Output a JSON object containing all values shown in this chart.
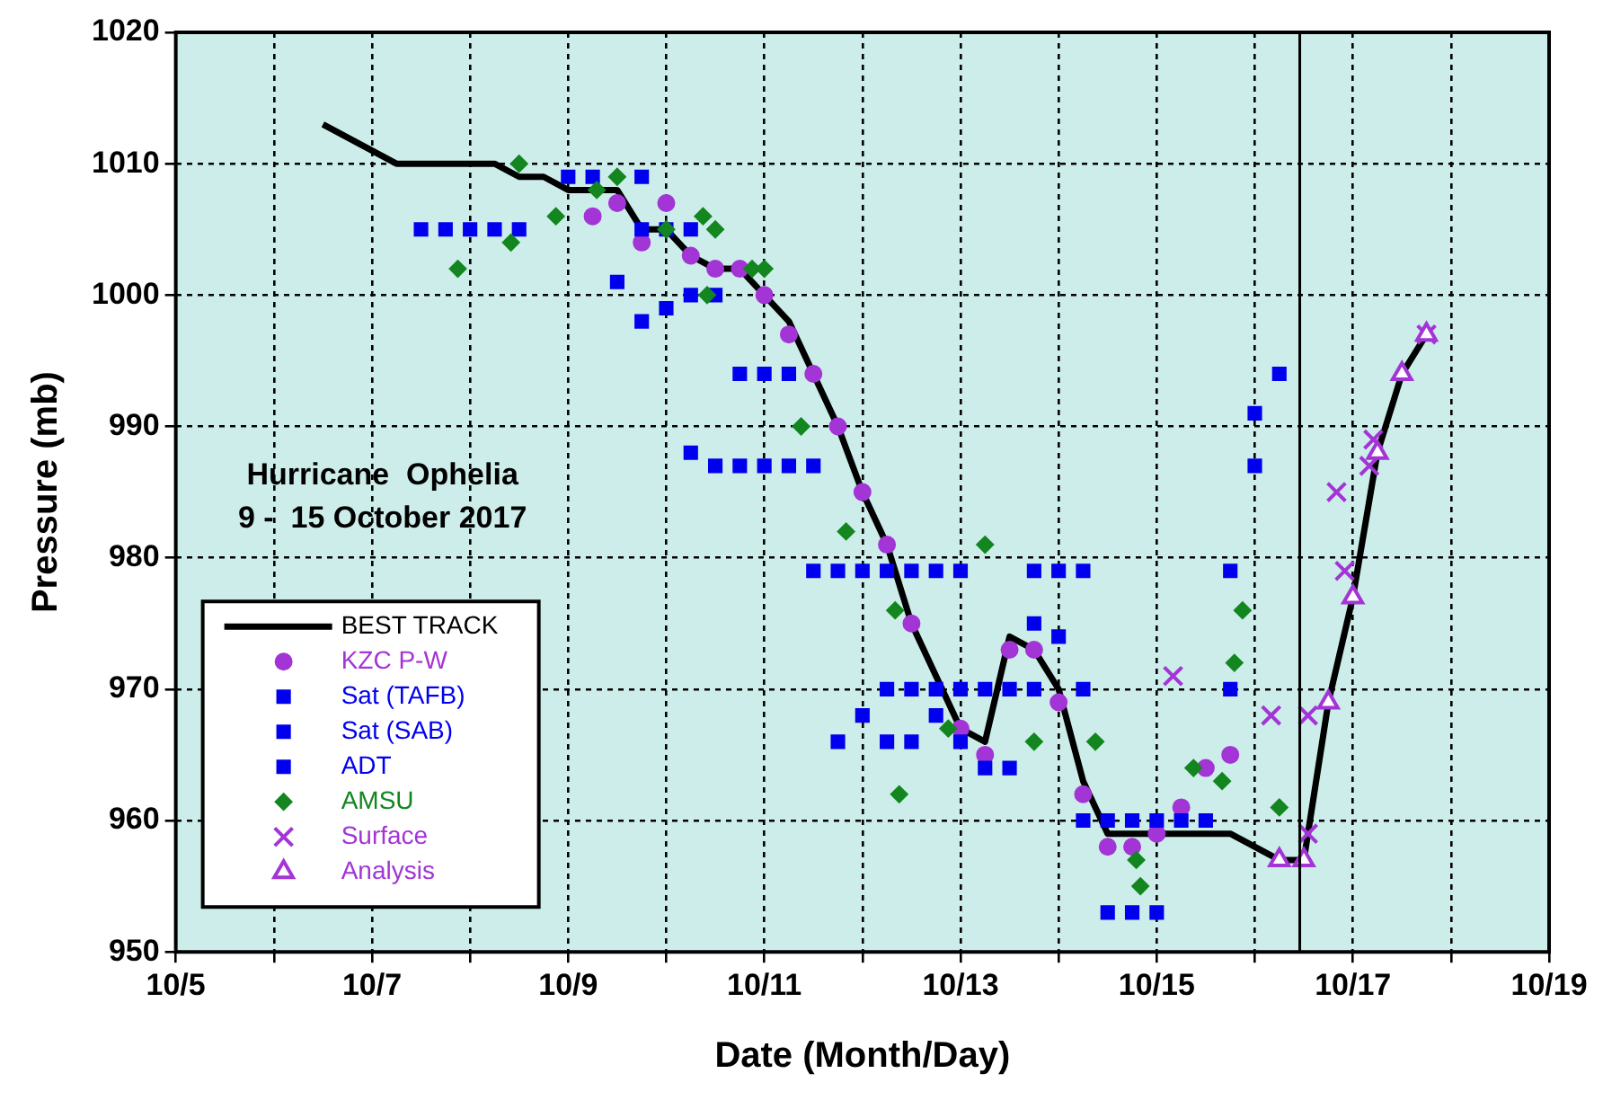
{
  "chart_data": {
    "type": "scatter",
    "title": "Hurricane  Ophelia",
    "subtitle": "9 -  15 October 2017",
    "xlabel": "Date (Month/Day)",
    "ylabel": "Pressure (mb)",
    "xlim": [
      "2017-10-05",
      "2017-10-19"
    ],
    "xticks": [
      {
        "value": "2017-10-05",
        "label": "10/5"
      },
      {
        "value": "2017-10-06",
        "label": null
      },
      {
        "value": "2017-10-07",
        "label": "10/7"
      },
      {
        "value": "2017-10-08",
        "label": null
      },
      {
        "value": "2017-10-09",
        "label": "10/9"
      },
      {
        "value": "2017-10-10",
        "label": null
      },
      {
        "value": "2017-10-11",
        "label": "10/11"
      },
      {
        "value": "2017-10-12",
        "label": null
      },
      {
        "value": "2017-10-13",
        "label": "10/13"
      },
      {
        "value": "2017-10-14",
        "label": null
      },
      {
        "value": "2017-10-15",
        "label": "10/15"
      },
      {
        "value": "2017-10-16",
        "label": null
      },
      {
        "value": "2017-10-17",
        "label": "10/17"
      },
      {
        "value": "2017-10-18",
        "label": null
      },
      {
        "value": "2017-10-19",
        "label": "10/19"
      }
    ],
    "ylim": [
      950,
      1020
    ],
    "yticks": [
      950,
      960,
      970,
      980,
      990,
      1000,
      1010,
      1020
    ],
    "grid": true,
    "legend": "bottom left",
    "ref_lines": [
      {
        "axis": "x",
        "value": "2017-10-16T11:00",
        "color": "#000000"
      }
    ],
    "series": [
      {
        "name": "BEST TRACK",
        "type": "line",
        "color": "#000000",
        "marker": "none",
        "x": [
          "2017-10-06T12:00",
          "2017-10-07T06:00",
          "2017-10-08T06:00",
          "2017-10-08T12:00",
          "2017-10-08T18:00",
          "2017-10-09T00:00",
          "2017-10-09T12:00",
          "2017-10-09T18:00",
          "2017-10-10T00:00",
          "2017-10-10T06:00",
          "2017-10-10T12:00",
          "2017-10-10T18:00",
          "2017-10-11T00:00",
          "2017-10-11T06:00",
          "2017-10-11T12:00",
          "2017-10-11T18:00",
          "2017-10-12T00:00",
          "2017-10-12T06:00",
          "2017-10-12T12:00",
          "2017-10-12T18:00",
          "2017-10-13T00:00",
          "2017-10-13T06:00",
          "2017-10-13T12:00",
          "2017-10-13T18:00",
          "2017-10-14T00:00",
          "2017-10-14T06:00",
          "2017-10-14T12:00",
          "2017-10-15T18:00",
          "2017-10-16T06:00",
          "2017-10-16T12:00",
          "2017-10-16T18:00",
          "2017-10-17T00:00",
          "2017-10-17T06:00",
          "2017-10-17T12:00",
          "2017-10-17T18:00"
        ],
        "values": [
          1013,
          1010,
          1010,
          1009,
          1009,
          1008,
          1008,
          1005,
          1005,
          1003,
          1002,
          1002,
          1000,
          998,
          994,
          990,
          985,
          981,
          975,
          971,
          967,
          966,
          974,
          973,
          970,
          963,
          959,
          959,
          957,
          957,
          969,
          977,
          988,
          994,
          997
        ]
      },
      {
        "name": "KZC P-W",
        "color": "#a334d6",
        "marker": "circle",
        "x": [
          "2017-10-09T06:00",
          "2017-10-09T12:00",
          "2017-10-09T18:00",
          "2017-10-10T00:00",
          "2017-10-10T06:00",
          "2017-10-10T12:00",
          "2017-10-10T18:00",
          "2017-10-11T00:00",
          "2017-10-11T06:00",
          "2017-10-11T12:00",
          "2017-10-11T18:00",
          "2017-10-12T00:00",
          "2017-10-12T06:00",
          "2017-10-12T12:00",
          "2017-10-13T00:00",
          "2017-10-13T06:00",
          "2017-10-13T12:00",
          "2017-10-13T18:00",
          "2017-10-14T00:00",
          "2017-10-14T06:00",
          "2017-10-14T12:00",
          "2017-10-14T18:00",
          "2017-10-15T00:00",
          "2017-10-15T06:00",
          "2017-10-15T12:00",
          "2017-10-15T18:00"
        ],
        "values": [
          1006,
          1007,
          1004,
          1007,
          1003,
          1002,
          1002,
          1000,
          997,
          994,
          990,
          985,
          981,
          975,
          967,
          965,
          973,
          973,
          969,
          962,
          958,
          958,
          959,
          961,
          964,
          965
        ]
      },
      {
        "name": "Sat (TAFB)",
        "color": "#0000ee",
        "marker": "square",
        "x": [
          "2017-10-07T12:00",
          "2017-10-07T18:00",
          "2017-10-08T00:00",
          "2017-10-08T06:00",
          "2017-10-08T12:00",
          "2017-10-09T00:00",
          "2017-10-09T06:00",
          "2017-10-09T18:00",
          "2017-10-10T00:00",
          "2017-10-10T06:00",
          "2017-10-10T12:00",
          "2017-10-10T18:00",
          "2017-10-11T00:00",
          "2017-10-11T06:00",
          "2017-10-11T12:00",
          "2017-10-11T18:00",
          "2017-10-12T00:00",
          "2017-10-12T06:00",
          "2017-10-12T12:00",
          "2017-10-12T18:00",
          "2017-10-13T00:00",
          "2017-10-13T06:00",
          "2017-10-13T12:00",
          "2017-10-13T18:00",
          "2017-10-14T00:00",
          "2017-10-14T06:00",
          "2017-10-14T12:00",
          "2017-10-14T18:00",
          "2017-10-15T00:00",
          "2017-10-15T06:00",
          "2017-10-15T12:00",
          "2017-10-15T18:00",
          "2017-10-16T00:00"
        ],
        "values": [
          1005,
          1005,
          1005,
          1005,
          1005,
          1009,
          1009,
          1005,
          1005,
          1005,
          1000,
          994,
          994,
          994,
          987,
          979,
          979,
          970,
          970,
          970,
          970,
          970,
          970,
          970,
          979,
          979,
          960,
          960,
          960,
          960,
          960,
          970,
          987
        ]
      },
      {
        "name": "Sat (SAB)",
        "color": "#0000ee",
        "marker": "square",
        "x": [
          "2017-10-09T18:00",
          "2017-10-10T06:00",
          "2017-10-10T12:00",
          "2017-10-10T18:00",
          "2017-10-11T00:00",
          "2017-10-11T06:00",
          "2017-10-12T06:00",
          "2017-10-12T12:00",
          "2017-10-12T18:00",
          "2017-10-13T00:00",
          "2017-10-13T18:00",
          "2017-10-14T06:00",
          "2017-10-15T18:00",
          "2017-10-16T06:00"
        ],
        "values": [
          1009,
          1000,
          987,
          987,
          987,
          987,
          979,
          979,
          979,
          979,
          979,
          970,
          979,
          994
        ]
      },
      {
        "name": "ADT",
        "color": "#0000ee",
        "marker": "square",
        "x": [
          "2017-10-09T12:00",
          "2017-10-09T18:00",
          "2017-10-10T00:00",
          "2017-10-10T06:00",
          "2017-10-11T12:00",
          "2017-10-11T18:00",
          "2017-10-12T00:00",
          "2017-10-12T06:00",
          "2017-10-12T12:00",
          "2017-10-12T18:00",
          "2017-10-13T00:00",
          "2017-10-13T06:00",
          "2017-10-13T12:00",
          "2017-10-13T18:00",
          "2017-10-14T00:00",
          "2017-10-14T06:00",
          "2017-10-14T12:00",
          "2017-10-14T18:00",
          "2017-10-15T00:00",
          "2017-10-16T00:00"
        ],
        "values": [
          1001,
          998,
          999,
          988,
          979,
          966,
          968,
          966,
          966,
          968,
          966,
          964,
          964,
          975,
          974,
          960,
          953,
          953,
          953,
          991
        ]
      },
      {
        "name": "AMSU",
        "color": "#13861f",
        "marker": "diamond",
        "x": [
          "2017-10-07T21:00",
          "2017-10-08T10:00",
          "2017-10-08T12:00",
          "2017-10-08T21:00",
          "2017-10-09T07:00",
          "2017-10-09T12:00",
          "2017-10-10T00:00",
          "2017-10-10T09:00",
          "2017-10-10T12:00",
          "2017-10-10T10:00",
          "2017-10-10T21:00",
          "2017-10-11T00:00",
          "2017-10-11T09:00",
          "2017-10-11T20:00",
          "2017-10-12T08:00",
          "2017-10-12T09:00",
          "2017-10-12T21:00",
          "2017-10-13T06:00",
          "2017-10-13T18:00",
          "2017-10-14T09:00",
          "2017-10-14T19:00",
          "2017-10-14T20:00",
          "2017-10-15T09:00",
          "2017-10-15T16:00",
          "2017-10-15T19:00",
          "2017-10-15T21:00",
          "2017-10-16T06:00"
        ],
        "values": [
          1002,
          1004,
          1010,
          1006,
          1008,
          1009,
          1005,
          1006,
          1005,
          1000,
          1002,
          1002,
          990,
          982,
          976,
          962,
          967,
          981,
          966,
          966,
          957,
          955,
          964,
          963,
          972,
          976,
          961
        ]
      },
      {
        "name": "Surface",
        "color": "#a334d6",
        "marker": "cross",
        "x": [
          "2017-10-15T04:00",
          "2017-10-16T04:00",
          "2017-10-16T13:00",
          "2017-10-16T13:00",
          "2017-10-16T20:00",
          "2017-10-16T22:00",
          "2017-10-17T04:00",
          "2017-10-17T05:00",
          "2017-10-17T18:00"
        ],
        "values": [
          971,
          968,
          968,
          959,
          985,
          979,
          987,
          989,
          997
        ]
      },
      {
        "name": "Analysis",
        "color": "#a334d6",
        "marker": "triangle",
        "x": [
          "2017-10-16T06:00",
          "2017-10-16T12:00",
          "2017-10-16T18:00",
          "2017-10-17T00:00",
          "2017-10-17T06:00",
          "2017-10-17T12:00",
          "2017-10-17T18:00"
        ],
        "values": [
          957,
          957,
          969,
          977,
          988,
          994,
          997
        ]
      }
    ]
  }
}
